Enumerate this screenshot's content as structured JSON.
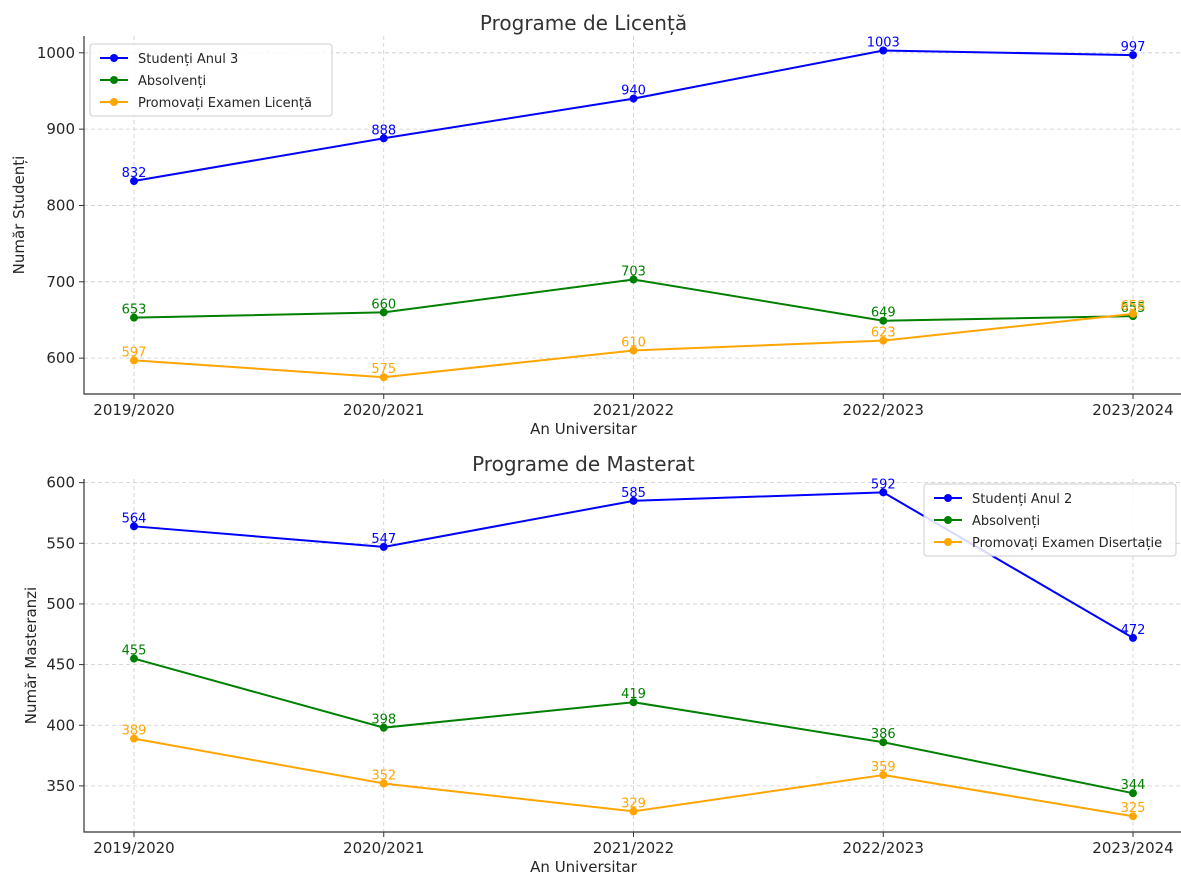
{
  "chart_data": [
    {
      "type": "line",
      "title": "Programe de Licență",
      "xlabel": "An Universitar",
      "ylabel": "Număr Studenți",
      "categories": [
        "2019/2020",
        "2020/2021",
        "2021/2022",
        "2022/2023",
        "2023/2024"
      ],
      "ylim": [
        553,
        1022
      ],
      "yticks": [
        600,
        700,
        800,
        900,
        1000
      ],
      "grid": true,
      "legend_position": "top-left",
      "series": [
        {
          "name": "Studenți Anul 3",
          "color": "#0000ff",
          "values": [
            832,
            888,
            940,
            1003,
            997
          ]
        },
        {
          "name": "Absolvenți",
          "color": "#008000",
          "values": [
            653,
            660,
            703,
            649,
            655
          ]
        },
        {
          "name": "Promovați Examen Licență",
          "color": "#ffa500",
          "values": [
            597,
            575,
            610,
            623,
            658
          ]
        }
      ]
    },
    {
      "type": "line",
      "title": "Programe de Masterat",
      "xlabel": "An Universitar",
      "ylabel": "Număr Masteranzi",
      "categories": [
        "2019/2020",
        "2020/2021",
        "2021/2022",
        "2022/2023",
        "2023/2024"
      ],
      "ylim": [
        312,
        603
      ],
      "yticks": [
        350,
        400,
        450,
        500,
        550,
        600
      ],
      "grid": true,
      "legend_position": "top-right",
      "series": [
        {
          "name": "Studenți Anul 2",
          "color": "#0000ff",
          "values": [
            564,
            547,
            585,
            592,
            472
          ]
        },
        {
          "name": "Absolvenți",
          "color": "#008000",
          "values": [
            455,
            398,
            419,
            386,
            344
          ]
        },
        {
          "name": "Promovați Examen Disertație",
          "color": "#ffa500",
          "values": [
            389,
            352,
            329,
            359,
            325
          ]
        }
      ]
    }
  ]
}
